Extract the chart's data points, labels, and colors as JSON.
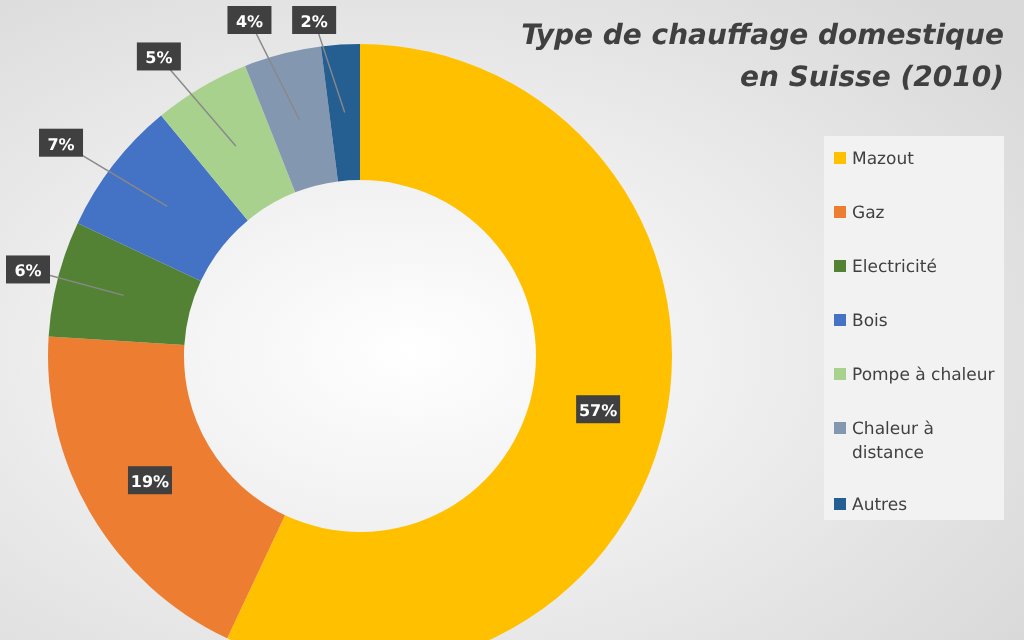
{
  "chart_data": {
    "type": "donut",
    "title": "Type de chauffage domestique en Suisse (2010)",
    "categories": [
      "Mazout",
      "Gaz",
      "Electricité",
      "Bois",
      "Pompe à chaleur",
      "Chaleur à distance",
      "Autres"
    ],
    "values": [
      57,
      19,
      6,
      7,
      5,
      4,
      2
    ],
    "colors": [
      "#ffc000",
      "#ed7d31",
      "#548235",
      "#4472c4",
      "#a9d18e",
      "#8497b0",
      "#255e91"
    ],
    "value_labels": [
      "57%",
      "19%",
      "6%",
      "7%",
      "5%",
      "4%",
      "2%"
    ],
    "legend": "right"
  }
}
